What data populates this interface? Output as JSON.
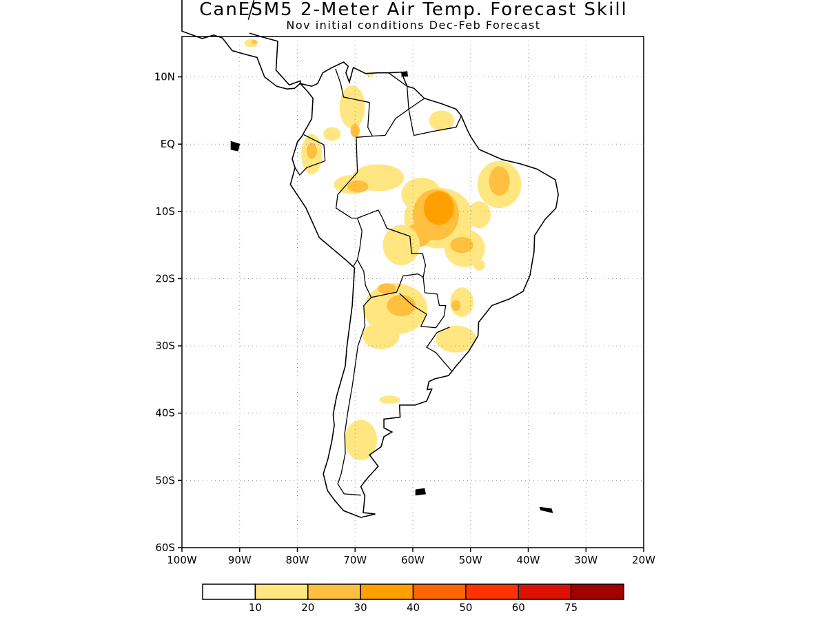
{
  "title": "CanESM5 2-Meter Air Temp. Forecast Skill",
  "subtitle": "Nov initial conditions  Dec-Feb Forecast",
  "map": {
    "lon_range": [
      -100,
      -20
    ],
    "lat_range": [
      -60,
      16
    ],
    "lat_ticks": [
      {
        "value": 10,
        "label": "10N"
      },
      {
        "value": 0,
        "label": "EQ"
      },
      {
        "value": -10,
        "label": "10S"
      },
      {
        "value": -20,
        "label": "20S"
      },
      {
        "value": -30,
        "label": "30S"
      },
      {
        "value": -40,
        "label": "40S"
      },
      {
        "value": -50,
        "label": "50S"
      },
      {
        "value": -60,
        "label": "60S"
      }
    ],
    "lon_ticks": [
      {
        "value": -100,
        "label": "100W"
      },
      {
        "value": -90,
        "label": "90W"
      },
      {
        "value": -80,
        "label": "80W"
      },
      {
        "value": -70,
        "label": "70W"
      },
      {
        "value": -60,
        "label": "60W"
      },
      {
        "value": -50,
        "label": "50W"
      },
      {
        "value": -40,
        "label": "40W"
      },
      {
        "value": -30,
        "label": "30W"
      },
      {
        "value": -20,
        "label": "20W"
      }
    ]
  },
  "colorbar": {
    "colors": [
      "#ffffff",
      "#ffe680",
      "#ffbf3f",
      "#ff9f00",
      "#ff6600",
      "#ff3300",
      "#dd1100",
      "#a00000"
    ],
    "labels": [
      "10",
      "20",
      "30",
      "40",
      "50",
      "60",
      "75"
    ]
  },
  "skill_regions": [
    {
      "level": 1,
      "lon": -70.5,
      "lat": 5.5,
      "rlon": 2.2,
      "rlat": 3.2
    },
    {
      "level": 2,
      "lon": -70.0,
      "lat": 2.0,
      "rlon": 0.8,
      "rlat": 1.0
    },
    {
      "level": 1,
      "lon": -77.5,
      "lat": -1.5,
      "rlon": 1.8,
      "rlat": 3.0
    },
    {
      "level": 2,
      "lon": -77.5,
      "lat": -1.0,
      "rlon": 0.9,
      "rlat": 1.2
    },
    {
      "level": 1,
      "lon": -74.0,
      "lat": 1.5,
      "rlon": 1.5,
      "rlat": 1.0
    },
    {
      "level": 1,
      "lon": -66.0,
      "lat": -5.0,
      "rlon": 4.5,
      "rlat": 2.0
    },
    {
      "level": 1,
      "lon": -70.5,
      "lat": -6.0,
      "rlon": 3.2,
      "rlat": 1.4
    },
    {
      "level": 2,
      "lon": -69.5,
      "lat": -6.3,
      "rlon": 1.8,
      "rlat": 0.9
    },
    {
      "level": 1,
      "lon": -58.5,
      "lat": -7.5,
      "rlon": 3.5,
      "rlat": 2.5
    },
    {
      "level": 1,
      "lon": -55.5,
      "lat": -11.0,
      "rlon": 6.0,
      "rlat": 4.5
    },
    {
      "level": 2,
      "lon": -56.0,
      "lat": -10.5,
      "rlon": 4.0,
      "rlat": 3.8
    },
    {
      "level": 3,
      "lon": -55.5,
      "lat": -9.5,
      "rlon": 2.6,
      "rlat": 2.5
    },
    {
      "level": 2,
      "lon": -59.0,
      "lat": -13.5,
      "rlon": 2.2,
      "rlat": 1.8
    },
    {
      "level": 1,
      "lon": -62.0,
      "lat": -15.0,
      "rlon": 3.2,
      "rlat": 3.0
    },
    {
      "level": 1,
      "lon": -51.0,
      "lat": -15.5,
      "rlon": 3.5,
      "rlat": 2.8
    },
    {
      "level": 2,
      "lon": -51.5,
      "lat": -15.0,
      "rlon": 2.0,
      "rlat": 1.2
    },
    {
      "level": 1,
      "lon": -45.0,
      "lat": -6.0,
      "rlon": 3.8,
      "rlat": 3.5
    },
    {
      "level": 2,
      "lon": -45.0,
      "lat": -5.5,
      "rlon": 1.8,
      "rlat": 2.2
    },
    {
      "level": 1,
      "lon": -48.5,
      "lat": -10.5,
      "rlon": 2.0,
      "rlat": 2.0
    },
    {
      "level": 1,
      "lon": -55.0,
      "lat": 3.5,
      "rlon": 2.2,
      "rlat": 1.5
    },
    {
      "level": 1,
      "lon": -67.5,
      "lat": 10.5,
      "rlon": 0.6,
      "rlat": 0.5
    },
    {
      "level": 1,
      "lon": -88.0,
      "lat": 15.0,
      "rlon": 1.2,
      "rlat": 0.6
    },
    {
      "level": 2,
      "lon": -87.5,
      "lat": 15.2,
      "rlon": 0.5,
      "rlat": 0.3
    },
    {
      "level": 1,
      "lon": -63.0,
      "lat": -24.5,
      "rlon": 5.5,
      "rlat": 3.8
    },
    {
      "level": 2,
      "lon": -62.0,
      "lat": -24.0,
      "rlon": 2.5,
      "rlat": 1.6
    },
    {
      "level": 2,
      "lon": -64.5,
      "lat": -21.5,
      "rlon": 1.6,
      "rlat": 0.8
    },
    {
      "level": 1,
      "lon": -65.5,
      "lat": -28.5,
      "rlon": 3.2,
      "rlat": 2.0
    },
    {
      "level": 1,
      "lon": -52.5,
      "lat": -29.0,
      "rlon": 3.5,
      "rlat": 2.0
    },
    {
      "level": 1,
      "lon": -51.5,
      "lat": -23.5,
      "rlon": 2.0,
      "rlat": 2.2
    },
    {
      "level": 2,
      "lon": -52.5,
      "lat": -24.0,
      "rlon": 0.8,
      "rlat": 0.8
    },
    {
      "level": 1,
      "lon": -69.0,
      "lat": -44.0,
      "rlon": 2.8,
      "rlat": 3.0
    },
    {
      "level": 1,
      "lon": -64.0,
      "lat": -38.0,
      "rlon": 1.8,
      "rlat": 0.6
    },
    {
      "level": 1,
      "lon": -48.5,
      "lat": -18.0,
      "rlon": 1.0,
      "rlat": 0.8
    }
  ]
}
